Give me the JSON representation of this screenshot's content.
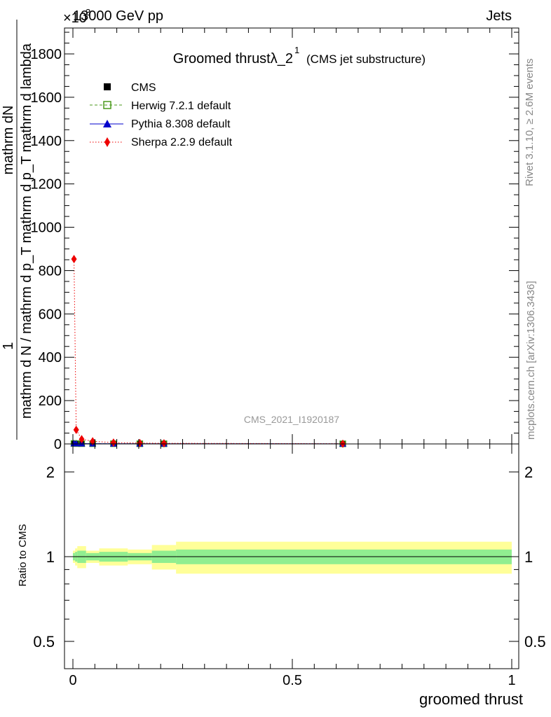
{
  "header": {
    "energy": "13000 GeV pp",
    "process": "Jets",
    "exponent": "×10",
    "exponent_power": "3"
  },
  "side": {
    "rivet": "Rivet 3.1.10, ≥ 2.6M events",
    "mcplots": "mcplots.cern.ch [arXiv:1306.3436]"
  },
  "chart_data": [
    {
      "type": "scatter",
      "title": "Groomed thrustλ_2",
      "title_sup": "1",
      "title_suffix": "(CMS jet substructure)",
      "watermark": "CMS_2021_I1920187",
      "ylabel_numerator": "1",
      "ylabel_numerator_main": "mathrm dN",
      "ylabel_denominator": "mathrm d N / mathrm d p_T mathrm d p_T mathrm d lambda",
      "xlim": [
        0,
        1
      ],
      "ylim": [
        0,
        1940
      ],
      "y_ticks": [
        0,
        200,
        400,
        600,
        800,
        1000,
        1200,
        1400,
        1600,
        1800
      ],
      "y_tick_labels": [
        "0",
        "200",
        "400",
        "600",
        "800",
        "1000",
        "1200",
        "1400",
        "1600",
        "1800"
      ],
      "legend_position": "top-left",
      "series": [
        {
          "name": "CMS",
          "color": "#000000",
          "marker": "square",
          "x": [
            0.0025,
            0.0075,
            0.02,
            0.045,
            0.0925,
            0.1525,
            0.2075,
            0.615
          ],
          "y": [
            1.8,
            1.5,
            1.2,
            1.1,
            1.0,
            0.9,
            0.8,
            0.5
          ]
        },
        {
          "name": "Herwig 7.2.1 default",
          "color": "#4b9a1d",
          "marker": "open-square",
          "line": "dashed",
          "x": [
            0.0025,
            0.0075,
            0.02,
            0.045,
            0.0925,
            0.1525,
            0.2075,
            0.615
          ],
          "y": [
            2.0,
            1.6,
            1.3,
            1.1,
            1.0,
            0.9,
            0.8,
            0.5
          ]
        },
        {
          "name": "Pythia 8.308 default",
          "color": "#0000cc",
          "marker": "triangle",
          "line": "solid",
          "x": [
            0.0025,
            0.0075,
            0.02,
            0.045,
            0.0925,
            0.1525,
            0.2075,
            0.615
          ],
          "y": [
            1.9,
            1.6,
            1.3,
            1.1,
            1.0,
            0.9,
            0.8,
            0.5
          ]
        },
        {
          "name": "Sherpa 2.2.9 default",
          "color": "#ee0000",
          "marker": "diamond",
          "line": "dotted",
          "x": [
            0.0025,
            0.0075,
            0.02,
            0.045,
            0.0925,
            0.1525,
            0.2075,
            0.615
          ],
          "y": [
            853,
            65,
            22,
            12,
            6,
            4,
            3,
            1
          ]
        }
      ]
    },
    {
      "type": "area",
      "ylabel": "Ratio to CMS",
      "xlabel": "groomed thrust",
      "xlim": [
        0,
        1
      ],
      "ylim": [
        0.4,
        2.4
      ],
      "log_y": true,
      "x_ticks": [
        0,
        0.5,
        1
      ],
      "x_tick_labels": [
        "0",
        "0.5",
        "1"
      ],
      "y_ticks": [
        0.5,
        1,
        2
      ],
      "y_tick_labels": [
        "0.5",
        "1",
        "2"
      ],
      "band_colors": {
        "stat": "#90ee90",
        "total": "#ffff99"
      },
      "bands": [
        {
          "x0": 0.0,
          "x1": 0.005,
          "stat": 0.03,
          "total": 0.05
        },
        {
          "x0": 0.005,
          "x1": 0.01,
          "stat": 0.04,
          "total": 0.07
        },
        {
          "x0": 0.01,
          "x1": 0.03,
          "stat": 0.05,
          "total": 0.09
        },
        {
          "x0": 0.03,
          "x1": 0.06,
          "stat": 0.03,
          "total": 0.05
        },
        {
          "x0": 0.06,
          "x1": 0.125,
          "stat": 0.04,
          "total": 0.07
        },
        {
          "x0": 0.125,
          "x1": 0.18,
          "stat": 0.03,
          "total": 0.06
        },
        {
          "x0": 0.18,
          "x1": 0.235,
          "stat": 0.05,
          "total": 0.1
        },
        {
          "x0": 0.235,
          "x1": 1.0,
          "stat": 0.06,
          "total": 0.13
        }
      ]
    }
  ]
}
